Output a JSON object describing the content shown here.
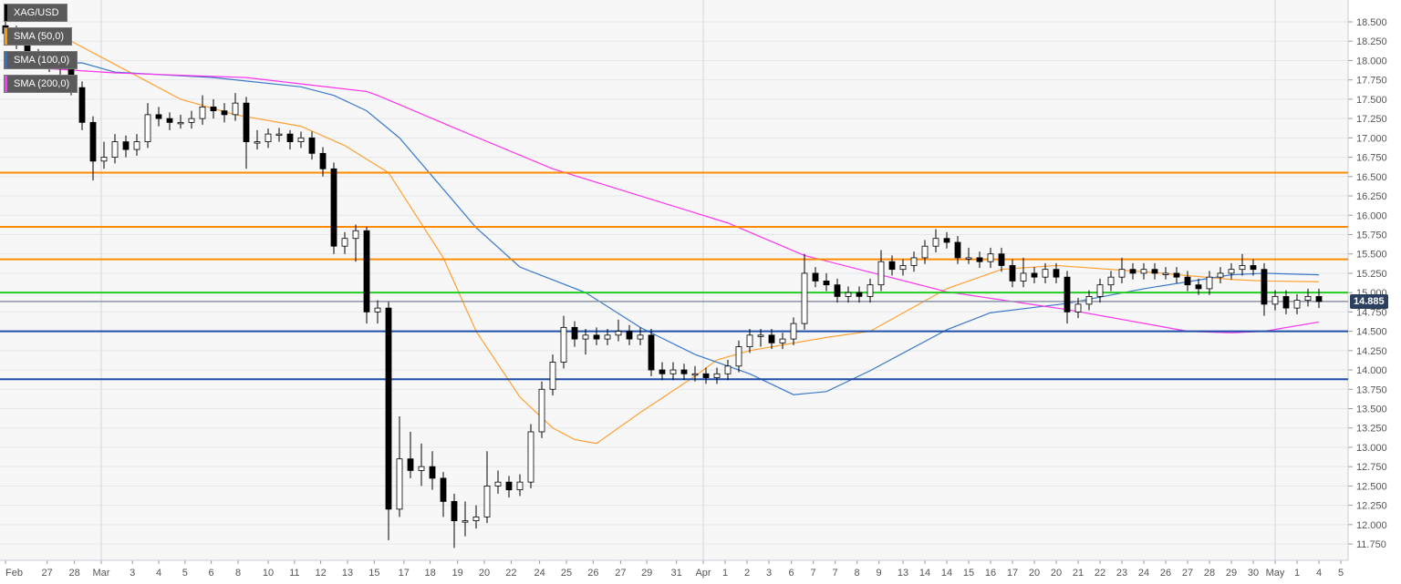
{
  "symbol": "XAG/USD",
  "current_price": "14.885",
  "legend": [
    {
      "label": "XAG/USD",
      "color": "#000000"
    },
    {
      "label": "SMA (50,0)",
      "color": "#ff9900"
    },
    {
      "label": "SMA (100,0)",
      "color": "#2f6fc6"
    },
    {
      "label": "SMA (200,0)",
      "color": "#ff33ff"
    }
  ],
  "colors": {
    "background": "#f7f7f8",
    "grid": "#e6e7ea",
    "bull_body": "#ffffff",
    "bear_body": "#000000",
    "price_tag": "#2b3f5f",
    "price_line": "#8a94a6"
  },
  "chart_data": {
    "type": "candlestick",
    "title": "XAG/USD",
    "ylim": [
      11.65,
      18.8
    ],
    "y_ticks": [
      "18.500",
      "18.250",
      "18.000",
      "17.750",
      "17.500",
      "17.250",
      "17.000",
      "16.750",
      "16.500",
      "16.250",
      "16.000",
      "15.750",
      "15.500",
      "15.250",
      "15.000",
      "14.750",
      "14.500",
      "14.250",
      "14.000",
      "13.750",
      "13.500",
      "13.250",
      "13.000",
      "12.750",
      "12.500",
      "12.250",
      "12.000",
      "11.750"
    ],
    "x_ticks": [
      {
        "label": "Feb",
        "at": 0
      },
      {
        "label": "27",
        "at": 3.8
      },
      {
        "label": "28",
        "at": 6.3
      },
      {
        "label": "Mar",
        "at": 8.75,
        "major": true
      },
      {
        "label": "3",
        "at": 11.6
      },
      {
        "label": "4",
        "at": 14
      },
      {
        "label": "5",
        "at": 16.4
      },
      {
        "label": "6",
        "at": 18.8
      },
      {
        "label": "8",
        "at": 21.25
      },
      {
        "label": "10",
        "at": 24
      },
      {
        "label": "11",
        "at": 26.4
      },
      {
        "label": "12",
        "at": 28.8
      },
      {
        "label": "13",
        "at": 31.25
      },
      {
        "label": "15",
        "at": 33.7
      },
      {
        "label": "17",
        "at": 36.4
      },
      {
        "label": "18",
        "at": 38.8
      },
      {
        "label": "19",
        "at": 41.3
      },
      {
        "label": "20",
        "at": 43.75
      },
      {
        "label": "22",
        "at": 46.2
      },
      {
        "label": "24",
        "at": 48.8
      },
      {
        "label": "25",
        "at": 51.25
      },
      {
        "label": "26",
        "at": 53.7
      },
      {
        "label": "27",
        "at": 56.2
      },
      {
        "label": "29",
        "at": 58.6
      },
      {
        "label": "31",
        "at": 61.3
      },
      {
        "label": "Apr",
        "at": 63.75,
        "major": true
      },
      {
        "label": "1",
        "at": 65.75
      },
      {
        "label": "2",
        "at": 67.75
      },
      {
        "label": "3",
        "at": 69.75
      },
      {
        "label": "6",
        "at": 71.8
      },
      {
        "label": "7",
        "at": 73.8
      },
      {
        "label": "7",
        "at": 75.8
      },
      {
        "label": "8",
        "at": 77.8
      },
      {
        "label": "9",
        "at": 79.8
      },
      {
        "label": "13",
        "at": 82
      },
      {
        "label": "14",
        "at": 84
      },
      {
        "label": "14",
        "at": 86
      },
      {
        "label": "15",
        "at": 88
      },
      {
        "label": "16",
        "at": 90
      },
      {
        "label": "17",
        "at": 92
      },
      {
        "label": "20",
        "at": 94
      },
      {
        "label": "20",
        "at": 96
      },
      {
        "label": "21",
        "at": 98
      },
      {
        "label": "22",
        "at": 100
      },
      {
        "label": "23",
        "at": 102
      },
      {
        "label": "24",
        "at": 104
      },
      {
        "label": "26",
        "at": 106
      },
      {
        "label": "27",
        "at": 108
      },
      {
        "label": "28",
        "at": 110
      },
      {
        "label": "29",
        "at": 112
      },
      {
        "label": "30",
        "at": 114
      },
      {
        "label": "May",
        "at": 116,
        "major": true
      },
      {
        "label": "1",
        "at": 118
      },
      {
        "label": "4",
        "at": 120
      },
      {
        "label": "5",
        "at": 122
      }
    ],
    "levels": [
      {
        "value": 16.55,
        "color": "#ff8c00"
      },
      {
        "value": 15.85,
        "color": "#ff8c00"
      },
      {
        "value": 15.43,
        "color": "#ff8c00"
      },
      {
        "value": 15.0,
        "color": "#22cc22"
      },
      {
        "value": 14.5,
        "color": "#1f4fa8"
      },
      {
        "value": 13.88,
        "color": "#1f4fa8"
      }
    ],
    "sma": [
      {
        "name": "SMA (50,0)",
        "color": "#ffa033",
        "points": [
          [
            0,
            18.3
          ],
          [
            6,
            18.25
          ],
          [
            10,
            17.95
          ],
          [
            16,
            17.5
          ],
          [
            21,
            17.3
          ],
          [
            27,
            17.15
          ],
          [
            31,
            16.9
          ],
          [
            35,
            16.55
          ],
          [
            40,
            15.45
          ],
          [
            43,
            14.5
          ],
          [
            47,
            13.65
          ],
          [
            50,
            13.25
          ],
          [
            52,
            13.1
          ],
          [
            54,
            13.05
          ],
          [
            58,
            13.45
          ],
          [
            63,
            13.92
          ],
          [
            65,
            14.13
          ],
          [
            68,
            14.25
          ],
          [
            75,
            14.42
          ],
          [
            79,
            14.5
          ],
          [
            86,
            15.05
          ],
          [
            91,
            15.3
          ],
          [
            96,
            15.35
          ],
          [
            104,
            15.27
          ],
          [
            112,
            15.17
          ],
          [
            115,
            15.15
          ],
          [
            120,
            15.14
          ]
        ]
      },
      {
        "name": "SMA (100,0)",
        "color": "#3a78c9",
        "points": [
          [
            0,
            17.95
          ],
          [
            7,
            17.97
          ],
          [
            10,
            17.85
          ],
          [
            19,
            17.78
          ],
          [
            27,
            17.66
          ],
          [
            30,
            17.55
          ],
          [
            33,
            17.35
          ],
          [
            36,
            17.0
          ],
          [
            43,
            15.84
          ],
          [
            47,
            15.33
          ],
          [
            53,
            15.0
          ],
          [
            58,
            14.55
          ],
          [
            63,
            14.2
          ],
          [
            68,
            13.95
          ],
          [
            72,
            13.68
          ],
          [
            75,
            13.72
          ],
          [
            79,
            13.99
          ],
          [
            86,
            14.52
          ],
          [
            90,
            14.74
          ],
          [
            97,
            14.86
          ],
          [
            104,
            15.05
          ],
          [
            112,
            15.23
          ],
          [
            115,
            15.25
          ],
          [
            120,
            15.23
          ]
        ]
      },
      {
        "name": "SMA (200,0)",
        "color": "#ff33ee",
        "points": [
          [
            0,
            17.93
          ],
          [
            10,
            17.84
          ],
          [
            22,
            17.78
          ],
          [
            33,
            17.6
          ],
          [
            34,
            17.55
          ],
          [
            41,
            17.13
          ],
          [
            50,
            16.6
          ],
          [
            58,
            16.25
          ],
          [
            66,
            15.9
          ],
          [
            73,
            15.48
          ],
          [
            86,
            15.01
          ],
          [
            97,
            14.78
          ],
          [
            108,
            14.5
          ],
          [
            112,
            14.48
          ],
          [
            115,
            14.5
          ],
          [
            120,
            14.62
          ]
        ]
      }
    ],
    "candles": [
      [
        18.45,
        18.55,
        18.25,
        18.35
      ],
      [
        18.35,
        18.45,
        18.15,
        18.25
      ],
      [
        18.25,
        18.33,
        17.95,
        18.05
      ],
      [
        18.05,
        18.15,
        17.9,
        18.0
      ],
      [
        18.0,
        18.1,
        17.85,
        17.95
      ],
      [
        17.95,
        18.05,
        17.8,
        17.9
      ],
      [
        17.9,
        17.98,
        17.55,
        17.65
      ],
      [
        17.65,
        17.73,
        17.1,
        17.2
      ],
      [
        17.2,
        17.28,
        16.45,
        16.7
      ],
      [
        16.7,
        16.95,
        16.6,
        16.75
      ],
      [
        16.75,
        17.05,
        16.67,
        16.95
      ],
      [
        16.95,
        17.03,
        16.75,
        16.85
      ],
      [
        16.85,
        17.05,
        16.77,
        16.95
      ],
      [
        16.95,
        17.45,
        16.87,
        17.3
      ],
      [
        17.3,
        17.4,
        17.15,
        17.25
      ],
      [
        17.25,
        17.33,
        17.1,
        17.2
      ],
      [
        17.2,
        17.3,
        17.12,
        17.2
      ],
      [
        17.2,
        17.35,
        17.12,
        17.25
      ],
      [
        17.25,
        17.55,
        17.17,
        17.4
      ],
      [
        17.4,
        17.5,
        17.25,
        17.35
      ],
      [
        17.35,
        17.45,
        17.2,
        17.3
      ],
      [
        17.3,
        17.58,
        17.22,
        17.45
      ],
      [
        17.45,
        17.53,
        16.6,
        16.95
      ],
      [
        16.95,
        17.1,
        16.85,
        16.95
      ],
      [
        16.95,
        17.12,
        16.87,
        17.05
      ],
      [
        17.05,
        17.13,
        16.95,
        17.05
      ],
      [
        17.05,
        17.1,
        16.85,
        16.95
      ],
      [
        16.95,
        17.08,
        16.87,
        17.0
      ],
      [
        17.0,
        17.08,
        16.72,
        16.8
      ],
      [
        16.8,
        16.88,
        16.5,
        16.6
      ],
      [
        16.6,
        16.68,
        15.5,
        15.6
      ],
      [
        15.6,
        15.78,
        15.5,
        15.7
      ],
      [
        15.7,
        15.88,
        15.4,
        15.8
      ],
      [
        15.8,
        15.85,
        14.6,
        14.75
      ],
      [
        14.75,
        14.9,
        14.6,
        14.8
      ],
      [
        14.8,
        14.88,
        11.8,
        12.2
      ],
      [
        12.2,
        13.4,
        12.1,
        12.85
      ],
      [
        12.85,
        13.2,
        12.6,
        12.7
      ],
      [
        12.7,
        13.05,
        12.5,
        12.75
      ],
      [
        12.75,
        12.95,
        12.45,
        12.6
      ],
      [
        12.6,
        12.68,
        12.1,
        12.3
      ],
      [
        12.3,
        12.4,
        11.7,
        12.05
      ],
      [
        12.05,
        12.3,
        11.85,
        12.05
      ],
      [
        12.05,
        12.25,
        11.95,
        12.1
      ],
      [
        12.1,
        12.95,
        12.02,
        12.5
      ],
      [
        12.5,
        12.7,
        12.4,
        12.55
      ],
      [
        12.55,
        12.63,
        12.35,
        12.45
      ],
      [
        12.45,
        12.65,
        12.37,
        12.55
      ],
      [
        12.55,
        13.3,
        12.47,
        13.2
      ],
      [
        13.2,
        13.85,
        13.12,
        13.75
      ],
      [
        13.75,
        14.2,
        13.67,
        14.1
      ],
      [
        14.1,
        14.7,
        14.02,
        14.55
      ],
      [
        14.55,
        14.63,
        14.3,
        14.4
      ],
      [
        14.4,
        14.53,
        14.2,
        14.45
      ],
      [
        14.45,
        14.55,
        14.32,
        14.4
      ],
      [
        14.4,
        14.53,
        14.32,
        14.45
      ],
      [
        14.45,
        14.65,
        14.37,
        14.5
      ],
      [
        14.5,
        14.58,
        14.32,
        14.4
      ],
      [
        14.4,
        14.55,
        14.32,
        14.45
      ],
      [
        14.45,
        14.53,
        13.92,
        14.0
      ],
      [
        14.0,
        14.1,
        13.87,
        13.95
      ],
      [
        13.95,
        14.1,
        13.87,
        14.0
      ],
      [
        14.0,
        14.08,
        13.87,
        13.95
      ],
      [
        13.95,
        14.05,
        13.85,
        13.95
      ],
      [
        13.95,
        14.03,
        13.82,
        13.9
      ],
      [
        13.9,
        14.03,
        13.82,
        13.95
      ],
      [
        13.95,
        14.13,
        13.87,
        14.05
      ],
      [
        14.05,
        14.38,
        13.97,
        14.3
      ],
      [
        14.3,
        14.53,
        14.22,
        14.45
      ],
      [
        14.45,
        14.53,
        14.3,
        14.45
      ],
      [
        14.45,
        14.53,
        14.27,
        14.35
      ],
      [
        14.35,
        14.48,
        14.27,
        14.4
      ],
      [
        14.4,
        14.68,
        14.32,
        14.6
      ],
      [
        14.6,
        15.5,
        14.52,
        15.25
      ],
      [
        15.25,
        15.33,
        15.07,
        15.15
      ],
      [
        15.15,
        15.25,
        15.02,
        15.1
      ],
      [
        15.1,
        15.18,
        14.87,
        14.95
      ],
      [
        14.95,
        15.08,
        14.87,
        15.0
      ],
      [
        15.0,
        15.08,
        14.87,
        14.95
      ],
      [
        14.95,
        15.18,
        14.87,
        15.1
      ],
      [
        15.1,
        15.55,
        15.02,
        15.4
      ],
      [
        15.4,
        15.48,
        15.22,
        15.3
      ],
      [
        15.3,
        15.43,
        15.22,
        15.35
      ],
      [
        15.35,
        15.53,
        15.27,
        15.45
      ],
      [
        15.45,
        15.68,
        15.37,
        15.6
      ],
      [
        15.6,
        15.82,
        15.52,
        15.7
      ],
      [
        15.7,
        15.78,
        15.57,
        15.65
      ],
      [
        15.65,
        15.73,
        15.37,
        15.45
      ],
      [
        15.45,
        15.58,
        15.37,
        15.45
      ],
      [
        15.45,
        15.53,
        15.32,
        15.4
      ],
      [
        15.4,
        15.58,
        15.32,
        15.5
      ],
      [
        15.5,
        15.58,
        15.27,
        15.35
      ],
      [
        15.35,
        15.43,
        15.07,
        15.15
      ],
      [
        15.15,
        15.45,
        15.07,
        15.25
      ],
      [
        15.25,
        15.33,
        15.12,
        15.2
      ],
      [
        15.2,
        15.38,
        15.12,
        15.3
      ],
      [
        15.3,
        15.38,
        15.12,
        15.2
      ],
      [
        15.2,
        15.28,
        14.6,
        14.75
      ],
      [
        14.75,
        14.93,
        14.67,
        14.85
      ],
      [
        14.85,
        15.03,
        14.77,
        14.95
      ],
      [
        14.95,
        15.18,
        14.87,
        15.1
      ],
      [
        15.1,
        15.28,
        15.02,
        15.2
      ],
      [
        15.2,
        15.45,
        15.12,
        15.3
      ],
      [
        15.3,
        15.38,
        15.17,
        15.25
      ],
      [
        15.25,
        15.38,
        15.17,
        15.3
      ],
      [
        15.3,
        15.38,
        15.17,
        15.25
      ],
      [
        15.25,
        15.33,
        15.17,
        15.25
      ],
      [
        15.25,
        15.33,
        15.12,
        15.2
      ],
      [
        15.2,
        15.28,
        15.02,
        15.1
      ],
      [
        15.1,
        15.18,
        14.97,
        15.05
      ],
      [
        15.05,
        15.28,
        14.97,
        15.2
      ],
      [
        15.2,
        15.33,
        15.12,
        15.25
      ],
      [
        15.25,
        15.38,
        15.17,
        15.3
      ],
      [
        15.3,
        15.5,
        15.22,
        15.35
      ],
      [
        15.35,
        15.43,
        15.22,
        15.3
      ],
      [
        15.3,
        15.38,
        14.7,
        14.85
      ],
      [
        14.85,
        15.03,
        14.77,
        14.95
      ],
      [
        14.95,
        15.03,
        14.72,
        14.8
      ],
      [
        14.8,
        14.98,
        14.72,
        14.9
      ],
      [
        14.9,
        15.05,
        14.82,
        14.95
      ],
      [
        14.95,
        15.05,
        14.8,
        14.885
      ]
    ]
  }
}
